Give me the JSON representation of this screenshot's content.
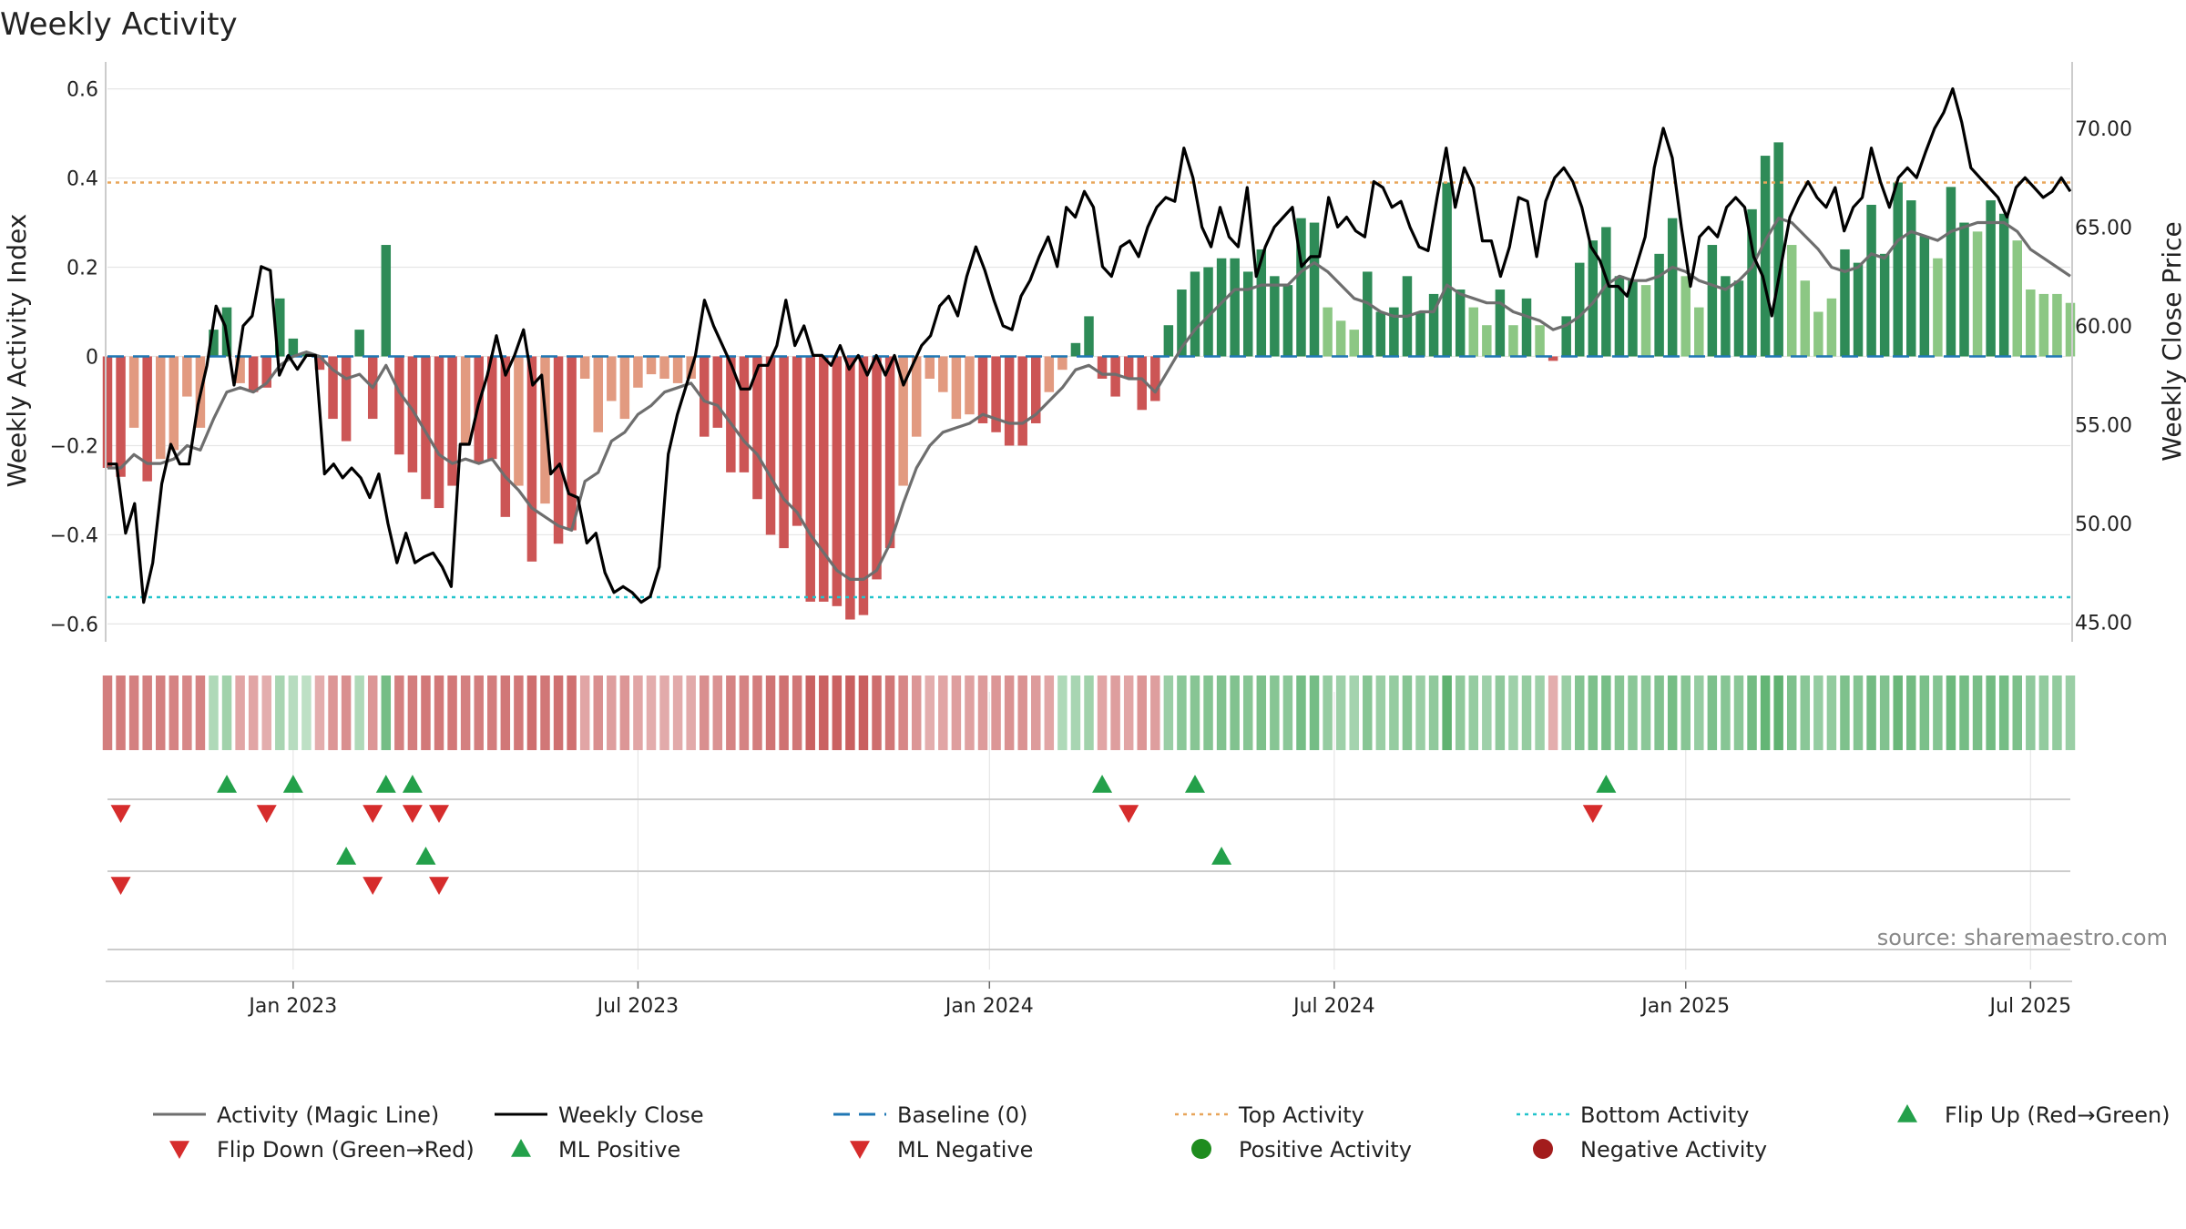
{
  "chart_data": {
    "type": "bar",
    "title": "Weekly Activity",
    "ylabel": "Weekly Activity Index",
    "y2label": "Weekly Close Price",
    "source": "source: sharemaestro.com",
    "ylim": [
      -0.64,
      0.64
    ],
    "y2lim": [
      44.0,
      72.9
    ],
    "yticks": [
      {
        "v": 0.6,
        "label": "0.6"
      },
      {
        "v": 0.4,
        "label": "0.4"
      },
      {
        "v": 0.2,
        "label": "0.2"
      },
      {
        "v": 0,
        "label": "0"
      },
      {
        "v": -0.2,
        "label": "−0.2"
      },
      {
        "v": -0.4,
        "label": "−0.4"
      },
      {
        "v": -0.6,
        "label": "−0.6"
      }
    ],
    "y2ticks": [
      {
        "v": 70,
        "label": "70.00"
      },
      {
        "v": 65,
        "label": "65.00"
      },
      {
        "v": 60,
        "label": "60.00"
      },
      {
        "v": 55,
        "label": "55.00"
      },
      {
        "v": 50,
        "label": "50.00"
      },
      {
        "v": 45,
        "label": "45.00"
      }
    ],
    "xticks": [
      {
        "week": 14,
        "label": "Jan 2023"
      },
      {
        "week": 40,
        "label": "Jul 2023"
      },
      {
        "week": 66.5,
        "label": "Jan 2024"
      },
      {
        "week": 92.5,
        "label": "Jul 2024"
      },
      {
        "week": 119,
        "label": "Jan 2025"
      },
      {
        "week": 145,
        "label": "Jul 2025"
      }
    ],
    "top_activity": 0.39,
    "bottom_activity": -0.54,
    "baseline": 0,
    "activity": [
      -0.25,
      -0.27,
      -0.16,
      -0.28,
      -0.23,
      -0.21,
      -0.09,
      -0.16,
      0.06,
      0.11,
      -0.06,
      -0.08,
      -0.07,
      0.13,
      0.04,
      0.01,
      -0.03,
      -0.14,
      -0.19,
      0.06,
      -0.14,
      0.25,
      -0.22,
      -0.26,
      -0.32,
      -0.34,
      -0.29,
      -0.2,
      -0.24,
      -0.23,
      -0.36,
      -0.29,
      -0.46,
      -0.33,
      -0.42,
      -0.39,
      -0.05,
      -0.17,
      -0.1,
      -0.14,
      -0.07,
      -0.04,
      -0.05,
      -0.06,
      -0.05,
      -0.18,
      -0.16,
      -0.26,
      -0.26,
      -0.32,
      -0.4,
      -0.43,
      -0.38,
      -0.55,
      -0.55,
      -0.56,
      -0.59,
      -0.58,
      -0.5,
      -0.43,
      -0.29,
      -0.18,
      -0.05,
      -0.08,
      -0.14,
      -0.13,
      -0.15,
      -0.17,
      -0.2,
      -0.2,
      -0.15,
      -0.08,
      -0.03,
      0.03,
      0.09,
      -0.05,
      -0.09,
      -0.05,
      -0.12,
      -0.1,
      0.07,
      0.15,
      0.19,
      0.2,
      0.22,
      0.22,
      0.19,
      0.24,
      0.18,
      0.16,
      0.31,
      0.3,
      0.11,
      0.08,
      0.06,
      0.19,
      0.1,
      0.11,
      0.18,
      0.1,
      0.14,
      0.39,
      0.15,
      0.11,
      0.07,
      0.15,
      0.07,
      0.13,
      0.07,
      -0.01,
      0.09,
      0.21,
      0.26,
      0.29,
      0.18,
      0.17,
      0.16,
      0.23,
      0.31,
      0.18,
      0.11,
      0.25,
      0.18,
      0.17,
      0.33,
      0.45,
      0.48,
      0.25,
      0.17,
      0.1,
      0.13,
      0.24,
      0.21,
      0.34,
      0.23,
      0.39,
      0.35,
      0.27,
      0.22,
      0.38,
      0.3,
      0.28,
      0.35,
      0.32,
      0.26,
      0.15,
      0.14,
      0.14,
      0.12
    ],
    "magic_line": [
      -0.25,
      -0.25,
      -0.22,
      -0.24,
      -0.24,
      -0.23,
      -0.2,
      -0.21,
      -0.14,
      -0.08,
      -0.07,
      -0.08,
      -0.06,
      -0.02,
      0,
      0.01,
      0,
      -0.03,
      -0.05,
      -0.04,
      -0.07,
      -0.02,
      -0.08,
      -0.12,
      -0.17,
      -0.22,
      -0.24,
      -0.23,
      -0.24,
      -0.23,
      -0.27,
      -0.3,
      -0.34,
      -0.36,
      -0.38,
      -0.39,
      -0.28,
      -0.26,
      -0.19,
      -0.17,
      -0.13,
      -0.11,
      -0.08,
      -0.07,
      -0.06,
      -0.1,
      -0.11,
      -0.15,
      -0.19,
      -0.22,
      -0.27,
      -0.32,
      -0.35,
      -0.4,
      -0.44,
      -0.48,
      -0.5,
      -0.5,
      -0.48,
      -0.42,
      -0.33,
      -0.25,
      -0.2,
      -0.17,
      -0.16,
      -0.15,
      -0.13,
      -0.14,
      -0.15,
      -0.15,
      -0.13,
      -0.1,
      -0.07,
      -0.03,
      -0.02,
      -0.04,
      -0.04,
      -0.05,
      -0.05,
      -0.08,
      -0.03,
      0.02,
      0.06,
      0.09,
      0.12,
      0.15,
      0.15,
      0.16,
      0.16,
      0.16,
      0.19,
      0.21,
      0.19,
      0.16,
      0.13,
      0.12,
      0.1,
      0.09,
      0.09,
      0.1,
      0.1,
      0.16,
      0.14,
      0.13,
      0.12,
      0.12,
      0.1,
      0.09,
      0.08,
      0.06,
      0.07,
      0.09,
      0.12,
      0.16,
      0.18,
      0.17,
      0.17,
      0.18,
      0.2,
      0.19,
      0.17,
      0.16,
      0.15,
      0.17,
      0.2,
      0.26,
      0.31,
      0.3,
      0.27,
      0.24,
      0.2,
      0.19,
      0.2,
      0.23,
      0.22,
      0.26,
      0.28,
      0.27,
      0.26,
      0.28,
      0.29,
      0.3,
      0.3,
      0.3,
      0.28,
      0.24,
      0.22,
      0.2,
      0.18
    ],
    "close": [
      53.0,
      53.0,
      49.5,
      51.0,
      46.0,
      48.0,
      52.0,
      54.0,
      53.0,
      53.0,
      56.0,
      58.0,
      61.0,
      60.0,
      57.0,
      60.0,
      60.5,
      63.0,
      62.8,
      57.5,
      58.5,
      57.8,
      58.5,
      58.5,
      52.5,
      53.0,
      52.3,
      52.8,
      52.3,
      51.3,
      52.5,
      50.0,
      48.0,
      49.5,
      48.0,
      48.3,
      48.5,
      47.8,
      46.8,
      54.0,
      54.0,
      56.0,
      57.5,
      59.5,
      57.5,
      58.5,
      59.8,
      57.0,
      57.5,
      52.5,
      53.0,
      51.5,
      51.3,
      49.0,
      49.5,
      47.5,
      46.5,
      46.8,
      46.5,
      46.0,
      46.3,
      47.8,
      53.5,
      55.5,
      57.0,
      58.5,
      61.3,
      60.0,
      59.0,
      58.0,
      56.8,
      56.8,
      58.0,
      58.0,
      59.0,
      61.3,
      59.0,
      60.0,
      58.5,
      58.5,
      58.0,
      59.0,
      57.8,
      58.5,
      57.5,
      58.5,
      57.5,
      58.5,
      57.0,
      58.0,
      59.0,
      59.5,
      61.0,
      61.5,
      60.5,
      62.5,
      64.0,
      62.8,
      61.3,
      60.0,
      59.8,
      61.5,
      62.3,
      63.5,
      64.5,
      63.0,
      66.0,
      65.5,
      66.8,
      66.0,
      63.0,
      62.5,
      64.0,
      64.3,
      63.5,
      65.0,
      66.0,
      66.5,
      66.3,
      69.0,
      67.5,
      65.0,
      64.0,
      66.0,
      64.5,
      64.0,
      67.0,
      62.5,
      64.0,
      65.0,
      65.5,
      66.0,
      63.0,
      63.5,
      63.5,
      66.5,
      65.0,
      65.5,
      64.8,
      64.5,
      67.3,
      67.0,
      66.0,
      66.3,
      65.0,
      64.0,
      63.8,
      66.5,
      69.0,
      66.0,
      68.0,
      67.0,
      64.3,
      64.3,
      62.5,
      64.0,
      66.5,
      66.3,
      63.5,
      66.3,
      67.5,
      68.0,
      67.3,
      66.0,
      64.0,
      63.3,
      62.0,
      62.0,
      61.5,
      63.0,
      64.5,
      68.0,
      70.0,
      68.5,
      65.0,
      62.0,
      64.5,
      65.0,
      64.5,
      66.0,
      66.5,
      66.0,
      63.5,
      62.5,
      60.5,
      63.0,
      65.5,
      66.5,
      67.3,
      66.5,
      66.0,
      67.0,
      64.8,
      66.0,
      66.5,
      69.0,
      67.3,
      66.0,
      67.5,
      68.0,
      67.5,
      68.8,
      70.0,
      70.8,
      72.0,
      70.3,
      68.0,
      67.5,
      67.0,
      66.5,
      65.5,
      67.0,
      67.5,
      67.0,
      66.5,
      66.8,
      67.5,
      66.8
    ],
    "strip_values": [
      -0.62,
      -0.62,
      -0.6,
      -0.6,
      -0.6,
      -0.58,
      -0.55,
      -0.58,
      0.3,
      0.4,
      -0.35,
      -0.35,
      -0.3,
      0.35,
      0.25,
      0.2,
      -0.3,
      -0.45,
      -0.5,
      0.3,
      -0.45,
      0.7,
      -0.6,
      -0.62,
      -0.65,
      -0.65,
      -0.65,
      -0.6,
      -0.62,
      -0.62,
      -0.66,
      -0.65,
      -0.72,
      -0.66,
      -0.7,
      -0.7,
      -0.35,
      -0.5,
      -0.4,
      -0.45,
      -0.35,
      -0.3,
      -0.32,
      -0.32,
      -0.32,
      -0.5,
      -0.48,
      -0.58,
      -0.58,
      -0.62,
      -0.68,
      -0.7,
      -0.66,
      -0.8,
      -0.8,
      -0.8,
      -0.82,
      -0.82,
      -0.72,
      -0.66,
      -0.55,
      -0.45,
      -0.3,
      -0.35,
      -0.4,
      -0.38,
      -0.42,
      -0.45,
      -0.48,
      -0.48,
      -0.42,
      -0.35,
      0.3,
      0.35,
      0.4,
      -0.35,
      -0.4,
      -0.35,
      -0.45,
      -0.4,
      0.45,
      0.55,
      0.58,
      0.6,
      0.62,
      0.62,
      0.58,
      0.65,
      0.58,
      0.55,
      0.7,
      0.7,
      0.48,
      0.42,
      0.38,
      0.58,
      0.45,
      0.48,
      0.58,
      0.45,
      0.52,
      0.85,
      0.52,
      0.48,
      0.42,
      0.52,
      0.42,
      0.48,
      0.42,
      -0.3,
      0.45,
      0.6,
      0.65,
      0.68,
      0.58,
      0.56,
      0.55,
      0.62,
      0.7,
      0.58,
      0.48,
      0.65,
      0.58,
      0.56,
      0.72,
      0.82,
      0.85,
      0.65,
      0.56,
      0.48,
      0.5,
      0.64,
      0.6,
      0.72,
      0.62,
      0.78,
      0.72,
      0.66,
      0.6,
      0.76,
      0.7,
      0.68,
      0.72,
      0.7,
      0.65,
      0.52,
      0.5,
      0.5,
      0.45
    ],
    "flip_up": [
      9,
      14,
      21,
      23,
      75,
      82,
      113
    ],
    "flip_down": [
      1,
      12,
      20,
      23,
      25,
      77,
      112
    ],
    "ml_positive": [
      18,
      24,
      84
    ],
    "ml_negative": [
      1,
      20,
      25
    ],
    "legend": [
      {
        "key": "magic",
        "label": "Activity (Magic Line)"
      },
      {
        "key": "close",
        "label": "Weekly Close"
      },
      {
        "key": "baseline",
        "label": "Baseline (0)"
      },
      {
        "key": "top",
        "label": "Top Activity"
      },
      {
        "key": "bottom",
        "label": "Bottom Activity"
      },
      {
        "key": "flipup",
        "label": "Flip Up (Red→Green)"
      },
      {
        "key": "flipdown",
        "label": "Flip Down (Green→Red)"
      },
      {
        "key": "mlpos",
        "label": "ML Positive"
      },
      {
        "key": "mlneg",
        "label": "ML Negative"
      },
      {
        "key": "pos",
        "label": "Positive Activity"
      },
      {
        "key": "neg",
        "label": "Negative Activity"
      }
    ]
  },
  "colors": {
    "pos_dark": "#2e8b57",
    "pos_light": "#8cc784",
    "neg_dark": "#cc5555",
    "neg_light": "#e29a80",
    "magic": "#6e6e6e",
    "close": "#000000",
    "baseline": "#1f77b4",
    "top": "#e8a55a",
    "bottom": "#22c4cc",
    "marker_green": "#23a04a",
    "marker_red": "#d62c2c",
    "dot_green": "#1e8c1e",
    "dot_red": "#a31c1c",
    "grid": "#e6e6e6",
    "axis": "#cccccc"
  }
}
